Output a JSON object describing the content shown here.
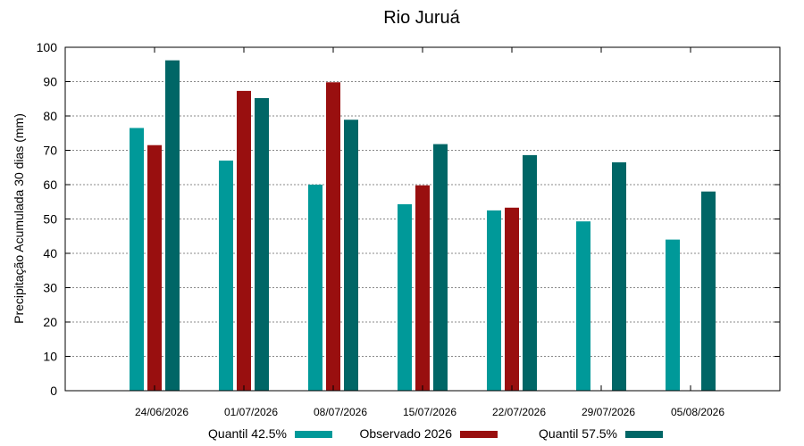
{
  "chart_data": {
    "type": "bar",
    "title": "Rio Juruá",
    "xlabel": "",
    "ylabel": "Precipitação Acumulada 30 dias (mm)",
    "ylim": [
      0,
      100
    ],
    "yticks": [
      0,
      10,
      20,
      30,
      40,
      50,
      60,
      70,
      80,
      90,
      100
    ],
    "grid": true,
    "legend": "bottom",
    "categories": [
      "24/06/2026",
      "01/07/2026",
      "08/07/2026",
      "15/07/2026",
      "22/07/2026",
      "29/07/2026",
      "05/08/2026"
    ],
    "series": [
      {
        "name": "Quantil 42.5%",
        "color": "#009999",
        "values": [
          76.5,
          67,
          60,
          54.3,
          52.5,
          49.3,
          44
        ]
      },
      {
        "name": "Observado 2026",
        "color": "#990f0f",
        "values": [
          71.5,
          87.3,
          89.8,
          59.8,
          53.3,
          null,
          null
        ]
      },
      {
        "name": "Quantil 57.5%",
        "color": "#006666",
        "values": [
          96.2,
          85.2,
          78.9,
          71.8,
          68.6,
          66.5,
          58
        ]
      }
    ]
  }
}
